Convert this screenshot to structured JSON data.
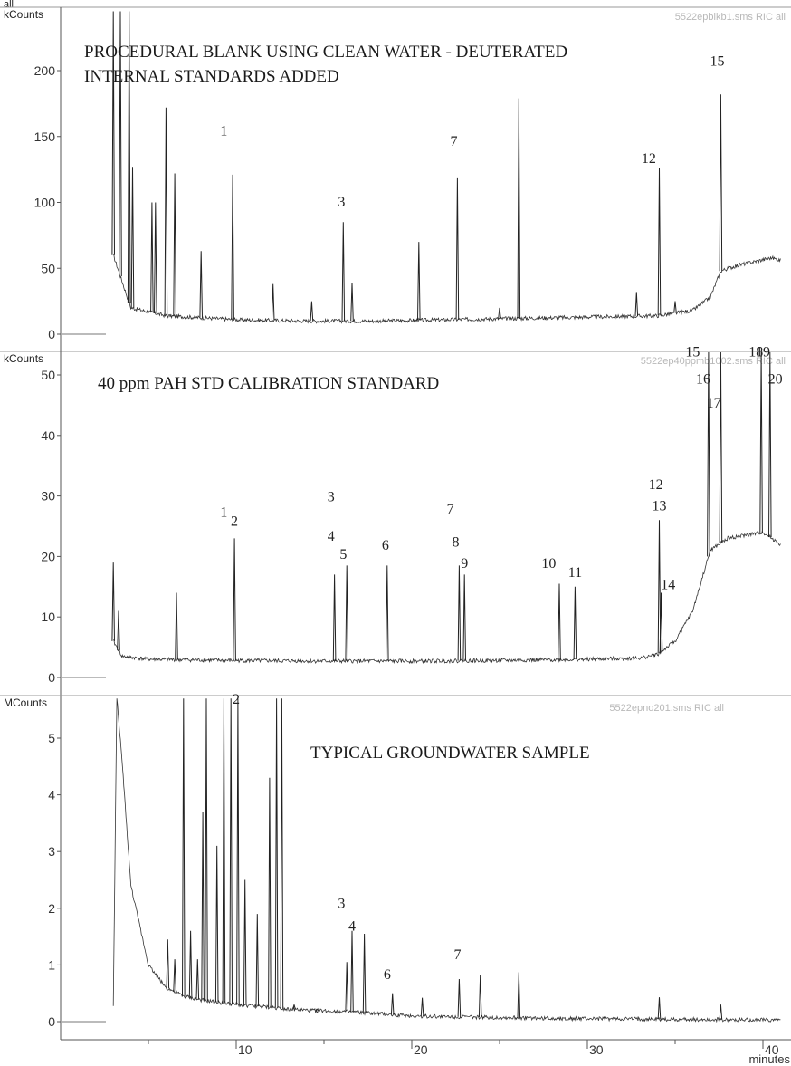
{
  "corner_label": "all",
  "chart_data": [
    {
      "type": "line",
      "id": "blank",
      "y_unit": "kCounts",
      "title": "PROCEDURAL BLANK USING CLEAN WATER  -  DEUTERATED INTERNAL STANDARDS ADDED",
      "title_lines": [
        "PROCEDURAL BLANK USING CLEAN WATER  -  DEUTERATED",
        "INTERNAL STANDARDS ADDED"
      ],
      "file_label": "5522epblkb1.sms RIC all",
      "ylim": [
        0,
        245
      ],
      "yticks": [
        0,
        50,
        100,
        150,
        200
      ],
      "xlim": [
        0,
        41
      ],
      "baseline": {
        "x": [
          3.0,
          4.0,
          6.0,
          10.0,
          14.0,
          18.0,
          22.0,
          26.0,
          30.0,
          34.0,
          36.0,
          37.0,
          37.6,
          38.5,
          40.5,
          41.0
        ],
        "y": [
          60.0,
          20.0,
          14.0,
          11.0,
          10.0,
          10.0,
          11.0,
          12.0,
          13.0,
          14.0,
          18.0,
          28.0,
          48.0,
          52.0,
          58.0,
          56.0
        ]
      },
      "peaks": [
        {
          "x": 3.0,
          "y": 245
        },
        {
          "x": 3.4,
          "y": 245
        },
        {
          "x": 3.9,
          "y": 245
        },
        {
          "x": 4.1,
          "y": 127
        },
        {
          "x": 5.2,
          "y": 100
        },
        {
          "x": 5.4,
          "y": 100
        },
        {
          "x": 6.0,
          "y": 172
        },
        {
          "x": 6.5,
          "y": 122
        },
        {
          "x": 8.0,
          "y": 63
        },
        {
          "x": 9.8,
          "y": 121
        },
        {
          "x": 12.1,
          "y": 38
        },
        {
          "x": 14.3,
          "y": 25
        },
        {
          "x": 16.1,
          "y": 85
        },
        {
          "x": 16.6,
          "y": 39
        },
        {
          "x": 20.4,
          "y": 70
        },
        {
          "x": 22.6,
          "y": 119
        },
        {
          "x": 25.0,
          "y": 20
        },
        {
          "x": 26.1,
          "y": 179
        },
        {
          "x": 32.8,
          "y": 32
        },
        {
          "x": 34.1,
          "y": 126
        },
        {
          "x": 35.0,
          "y": 25
        },
        {
          "x": 37.6,
          "y": 182
        }
      ],
      "labels": [
        {
          "text": "1",
          "x": 9.3,
          "y": 155
        },
        {
          "text": "3",
          "x": 16.0,
          "y": 101
        },
        {
          "text": "7",
          "x": 22.4,
          "y": 147
        },
        {
          "text": "12",
          "x": 33.5,
          "y": 134
        },
        {
          "text": "15",
          "x": 37.4,
          "y": 208
        }
      ]
    },
    {
      "type": "line",
      "id": "standard",
      "y_unit": "kCounts",
      "title": "40 ppm PAH STD CALIBRATION STANDARD",
      "title_lines": [
        "40 ppm PAH STD CALIBRATION STANDARD"
      ],
      "file_label": "5522ep40ppmb1002.sms RIC all",
      "ylim": [
        0,
        54
      ],
      "yticks": [
        0,
        10,
        20,
        30,
        40,
        50
      ],
      "xlim": [
        0,
        41
      ],
      "baseline": {
        "x": [
          3.0,
          3.5,
          5.0,
          10.0,
          15.0,
          20.0,
          25.0,
          30.0,
          33.0,
          34.0,
          35.0,
          36.0,
          36.6,
          37.0,
          38.0,
          39.0,
          40.0,
          41.0
        ],
        "y": [
          6.0,
          3.5,
          3.0,
          2.8,
          2.7,
          2.7,
          2.8,
          3.0,
          3.2,
          3.8,
          6.0,
          11.0,
          17.0,
          21.0,
          23.0,
          23.5,
          24.0,
          22.0
        ]
      },
      "peaks": [
        {
          "x": 3.0,
          "y": 19
        },
        {
          "x": 3.3,
          "y": 11
        },
        {
          "x": 6.6,
          "y": 14
        },
        {
          "x": 9.9,
          "y": 23
        },
        {
          "x": 15.6,
          "y": 17
        },
        {
          "x": 16.3,
          "y": 18.5
        },
        {
          "x": 18.6,
          "y": 18.5
        },
        {
          "x": 22.7,
          "y": 18.5
        },
        {
          "x": 23.0,
          "y": 17
        },
        {
          "x": 28.4,
          "y": 15.5
        },
        {
          "x": 29.3,
          "y": 15
        },
        {
          "x": 34.1,
          "y": 26
        },
        {
          "x": 34.2,
          "y": 14
        },
        {
          "x": 36.9,
          "y": 54
        },
        {
          "x": 37.6,
          "y": 54
        },
        {
          "x": 39.9,
          "y": 54
        },
        {
          "x": 40.4,
          "y": 54
        }
      ],
      "labels": [
        {
          "text": "1",
          "x": 9.3,
          "y": 27.5
        },
        {
          "text": "2",
          "x": 9.9,
          "y": 26
        },
        {
          "text": "3",
          "x": 15.4,
          "y": 30
        },
        {
          "text": "4",
          "x": 15.4,
          "y": 23.5
        },
        {
          "text": "5",
          "x": 16.1,
          "y": 20.5
        },
        {
          "text": "6",
          "x": 18.5,
          "y": 22
        },
        {
          "text": "7",
          "x": 22.2,
          "y": 28
        },
        {
          "text": "8",
          "x": 22.5,
          "y": 22.5
        },
        {
          "text": "9",
          "x": 23.0,
          "y": 19
        },
        {
          "text": "10",
          "x": 27.8,
          "y": 19
        },
        {
          "text": "11",
          "x": 29.3,
          "y": 17.5
        },
        {
          "text": "12",
          "x": 33.9,
          "y": 32
        },
        {
          "text": "13",
          "x": 34.1,
          "y": 28.5
        },
        {
          "text": "14",
          "x": 34.6,
          "y": 15.5
        },
        {
          "text": "15",
          "x": 36.0,
          "y": 57.5
        },
        {
          "text": "16",
          "x": 36.6,
          "y": 49.5
        },
        {
          "text": "17",
          "x": 37.2,
          "y": 45.5
        },
        {
          "text": "18",
          "x": 39.6,
          "y": 61
        },
        {
          "text": "19",
          "x": 40.0,
          "y": 57.5
        },
        {
          "text": "20",
          "x": 40.7,
          "y": 49.5
        }
      ]
    },
    {
      "type": "line",
      "id": "sample",
      "y_unit": "MCounts",
      "title": "TYPICAL GROUNDWATER SAMPLE",
      "title_lines": [
        "TYPICAL GROUNDWATER SAMPLE"
      ],
      "file_label": "5522epno201.sms RIC all",
      "ylim": [
        0,
        5.7
      ],
      "yticks": [
        0,
        1,
        2,
        3,
        4,
        5
      ],
      "xlim": [
        0,
        41
      ],
      "xticks": [
        10,
        20,
        30,
        40
      ],
      "xlabel": "minutes",
      "baseline": {
        "x": [
          3.0,
          3.2,
          3.5,
          4.0,
          5.0,
          6.0,
          7.0,
          8.0,
          10.0,
          12.0,
          14.0,
          16.0,
          20.0,
          25.0,
          30.0,
          35.0,
          40.0,
          41.0
        ],
        "y": [
          0.3,
          5.7,
          4.6,
          2.4,
          1.0,
          0.6,
          0.45,
          0.38,
          0.3,
          0.25,
          0.2,
          0.18,
          0.1,
          0.07,
          0.05,
          0.04,
          0.03,
          0.03
        ]
      },
      "peaks": [
        {
          "x": 6.1,
          "y": 1.45
        },
        {
          "x": 6.5,
          "y": 1.1
        },
        {
          "x": 7.0,
          "y": 5.7
        },
        {
          "x": 7.4,
          "y": 1.6
        },
        {
          "x": 7.8,
          "y": 1.1
        },
        {
          "x": 8.1,
          "y": 3.7
        },
        {
          "x": 8.3,
          "y": 5.7
        },
        {
          "x": 8.9,
          "y": 3.1
        },
        {
          "x": 9.3,
          "y": 5.7
        },
        {
          "x": 9.7,
          "y": 5.7
        },
        {
          "x": 10.1,
          "y": 5.7
        },
        {
          "x": 10.5,
          "y": 2.5
        },
        {
          "x": 11.2,
          "y": 1.9
        },
        {
          "x": 11.9,
          "y": 4.3
        },
        {
          "x": 12.3,
          "y": 5.7
        },
        {
          "x": 12.6,
          "y": 5.7
        },
        {
          "x": 13.3,
          "y": 0.3
        },
        {
          "x": 14.6,
          "y": 0.22
        },
        {
          "x": 16.3,
          "y": 1.05
        },
        {
          "x": 16.6,
          "y": 1.6
        },
        {
          "x": 17.3,
          "y": 1.55
        },
        {
          "x": 18.9,
          "y": 0.5
        },
        {
          "x": 20.6,
          "y": 0.42
        },
        {
          "x": 22.7,
          "y": 0.75
        },
        {
          "x": 23.9,
          "y": 0.83
        },
        {
          "x": 26.1,
          "y": 0.87
        },
        {
          "x": 34.1,
          "y": 0.43
        },
        {
          "x": 37.6,
          "y": 0.3
        }
      ],
      "labels": [
        {
          "text": "2",
          "x": 10.0,
          "y": 5.85
        },
        {
          "text": "3",
          "x": 16.0,
          "y": 2.1
        },
        {
          "text": "4",
          "x": 16.6,
          "y": 1.7
        },
        {
          "text": "6",
          "x": 18.6,
          "y": 0.85
        },
        {
          "text": "7",
          "x": 22.6,
          "y": 1.2
        }
      ]
    }
  ]
}
